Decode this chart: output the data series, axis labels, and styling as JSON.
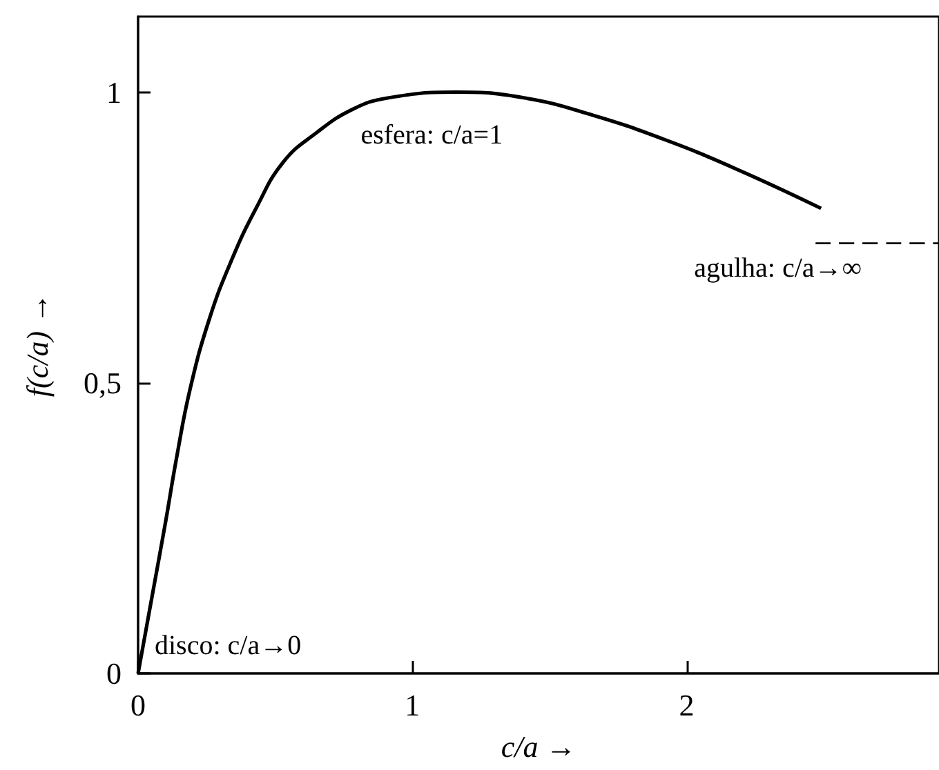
{
  "chart_data": {
    "type": "line",
    "xlabel": "c/a →",
    "ylabel": "f(c/a) →",
    "xlim": [
      0,
      2.92
    ],
    "xticks": [
      0,
      1,
      2
    ],
    "ylim": [
      0,
      1.13
    ],
    "yticks": [
      0,
      {
        "value": 0.5,
        "label": "0,5"
      },
      1
    ],
    "grid": false,
    "series": [
      {
        "color": "#000000",
        "line_style": "solid",
        "x": [
          0,
          0.05,
          0.1,
          0.14,
          0.19,
          0.26,
          0.34,
          0.43,
          0.53,
          0.65,
          0.78,
          0.91,
          1.16,
          1.41,
          1.66,
          1.91,
          2.17,
          2.49
        ],
        "values": [
          0,
          0.13,
          0.26,
          0.37,
          0.49,
          0.61,
          0.71,
          0.8,
          0.88,
          0.93,
          0.97,
          0.99,
          1.0,
          0.99,
          0.96,
          0.92,
          0.87,
          0.8
        ]
      },
      {
        "color": "#000000",
        "line_style": "dashed",
        "x": [
          2.47,
          2.92
        ],
        "values": [
          0.74,
          0.74
        ]
      }
    ],
    "annotations": [
      {
        "text": "esfera: c/a=1",
        "x": 1,
        "y": 0.99
      },
      {
        "text": "agulha: c/a→∞",
        "x": 2.47,
        "y": 0.74
      },
      {
        "text": "disco: c/a→0",
        "x": 0,
        "y": 0
      }
    ]
  }
}
